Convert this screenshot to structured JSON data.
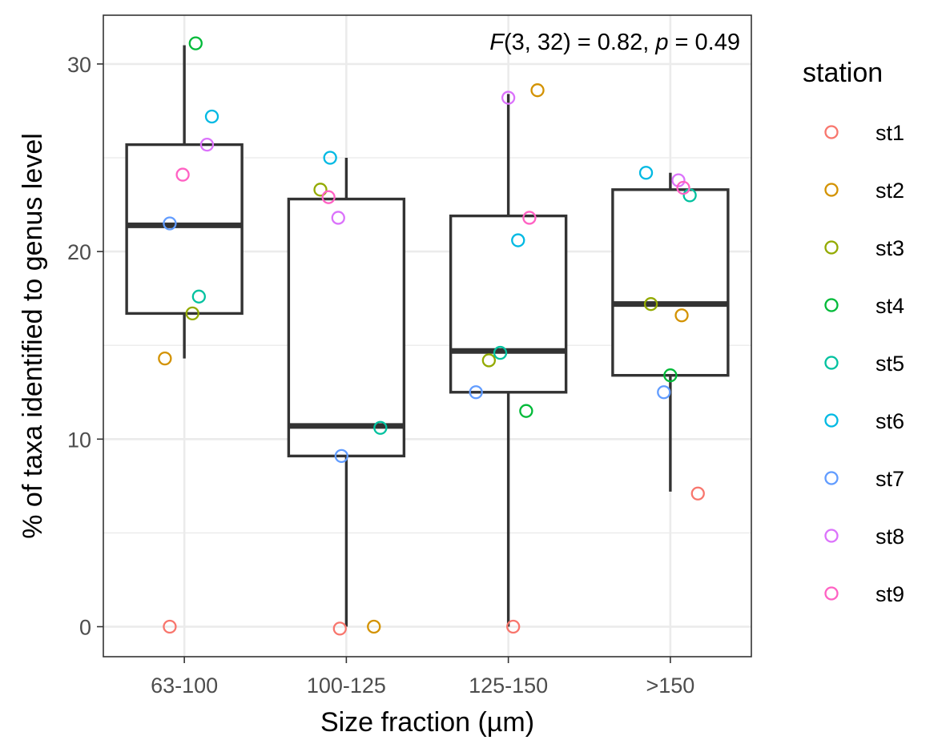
{
  "chart_data": {
    "type": "box",
    "title": "",
    "xlabel": "Size fraction (µm)",
    "ylabel": "% of taxa identified to genus level",
    "categories": [
      "63-100",
      "100-125",
      "125-150",
      ">150"
    ],
    "ylim": [
      -1.6,
      32.6
    ],
    "yticks": [
      0,
      10,
      20,
      30
    ],
    "grid": true,
    "annotation": {
      "parts": [
        {
          "text": "F",
          "italic": true
        },
        {
          "text": "(3, 32) = 0.82, ",
          "italic": false
        },
        {
          "text": "p",
          "italic": true
        },
        {
          "text": " = 0.49",
          "italic": false
        }
      ]
    },
    "boxes": [
      {
        "category": "63-100",
        "whisker_low": 14.3,
        "q1": 16.7,
        "median": 21.4,
        "q3": 25.7,
        "whisker_high": 31.0
      },
      {
        "category": "100-125",
        "whisker_low": 0.0,
        "q1": 9.1,
        "median": 10.7,
        "q3": 22.8,
        "whisker_high": 25.0
      },
      {
        "category": "125-150",
        "whisker_low": 0.0,
        "q1": 12.5,
        "median": 14.7,
        "q3": 21.9,
        "whisker_high": 28.4
      },
      {
        "category": ">150",
        "whisker_low": 7.2,
        "q1": 13.4,
        "median": 17.2,
        "q3": 23.3,
        "whisker_high": 24.2
      }
    ],
    "legend": {
      "title": "station",
      "position": "right",
      "entries": [
        {
          "name": "st1",
          "color": "#F8766D"
        },
        {
          "name": "st2",
          "color": "#D39200"
        },
        {
          "name": "st3",
          "color": "#93AA00"
        },
        {
          "name": "st4",
          "color": "#00BA38"
        },
        {
          "name": "st5",
          "color": "#00C19F"
        },
        {
          "name": "st6",
          "color": "#00B9E3"
        },
        {
          "name": "st7",
          "color": "#619CFF"
        },
        {
          "name": "st8",
          "color": "#DB72FB"
        },
        {
          "name": "st9",
          "color": "#FF61C3"
        }
      ]
    },
    "points": [
      {
        "category": "63-100",
        "station": "st1",
        "jitter": -0.09,
        "y": 0.0
      },
      {
        "category": "63-100",
        "station": "st2",
        "jitter": -0.12,
        "y": 14.3
      },
      {
        "category": "63-100",
        "station": "st3",
        "jitter": 0.05,
        "y": 16.7
      },
      {
        "category": "63-100",
        "station": "st4",
        "jitter": 0.07,
        "y": 31.1
      },
      {
        "category": "63-100",
        "station": "st5",
        "jitter": 0.09,
        "y": 17.6
      },
      {
        "category": "63-100",
        "station": "st6",
        "jitter": 0.17,
        "y": 27.2
      },
      {
        "category": "63-100",
        "station": "st7",
        "jitter": -0.09,
        "y": 21.5
      },
      {
        "category": "63-100",
        "station": "st8",
        "jitter": 0.14,
        "y": 25.7
      },
      {
        "category": "63-100",
        "station": "st9",
        "jitter": -0.01,
        "y": 24.1
      },
      {
        "category": "100-125",
        "station": "st1",
        "jitter": -0.04,
        "y": -0.1
      },
      {
        "category": "100-125",
        "station": "st2",
        "jitter": 0.17,
        "y": 0.0
      },
      {
        "category": "100-125",
        "station": "st3",
        "jitter": -0.16,
        "y": 23.3
      },
      {
        "category": "100-125",
        "station": "st5",
        "jitter": 0.21,
        "y": 10.6
      },
      {
        "category": "100-125",
        "station": "st6",
        "jitter": -0.1,
        "y": 25.0
      },
      {
        "category": "100-125",
        "station": "st7",
        "jitter": -0.03,
        "y": 9.1
      },
      {
        "category": "100-125",
        "station": "st8",
        "jitter": -0.05,
        "y": 21.8
      },
      {
        "category": "100-125",
        "station": "st9",
        "jitter": -0.11,
        "y": 22.9
      },
      {
        "category": "125-150",
        "station": "st1",
        "jitter": 0.03,
        "y": 0.0
      },
      {
        "category": "125-150",
        "station": "st2",
        "jitter": 0.18,
        "y": 28.6
      },
      {
        "category": "125-150",
        "station": "st3",
        "jitter": -0.12,
        "y": 14.2
      },
      {
        "category": "125-150",
        "station": "st4",
        "jitter": 0.11,
        "y": 11.5
      },
      {
        "category": "125-150",
        "station": "st5",
        "jitter": -0.05,
        "y": 14.6
      },
      {
        "category": "125-150",
        "station": "st6",
        "jitter": 0.06,
        "y": 20.6
      },
      {
        "category": "125-150",
        "station": "st7",
        "jitter": -0.2,
        "y": 12.5
      },
      {
        "category": "125-150",
        "station": "st8",
        "jitter": 0.0,
        "y": 28.2
      },
      {
        "category": "125-150",
        "station": "st9",
        "jitter": 0.13,
        "y": 21.8
      },
      {
        "category": ">150",
        "station": "st1",
        "jitter": 0.17,
        "y": 7.1
      },
      {
        "category": ">150",
        "station": "st2",
        "jitter": 0.07,
        "y": 16.6
      },
      {
        "category": ">150",
        "station": "st3",
        "jitter": -0.12,
        "y": 17.2
      },
      {
        "category": ">150",
        "station": "st4",
        "jitter": 0.0,
        "y": 13.4
      },
      {
        "category": ">150",
        "station": "st5",
        "jitter": 0.12,
        "y": 23.0
      },
      {
        "category": ">150",
        "station": "st6",
        "jitter": -0.15,
        "y": 24.2
      },
      {
        "category": ">150",
        "station": "st7",
        "jitter": -0.04,
        "y": 12.5
      },
      {
        "category": ">150",
        "station": "st8",
        "jitter": 0.05,
        "y": 23.8
      },
      {
        "category": ">150",
        "station": "st9",
        "jitter": 0.08,
        "y": 23.4
      }
    ]
  }
}
